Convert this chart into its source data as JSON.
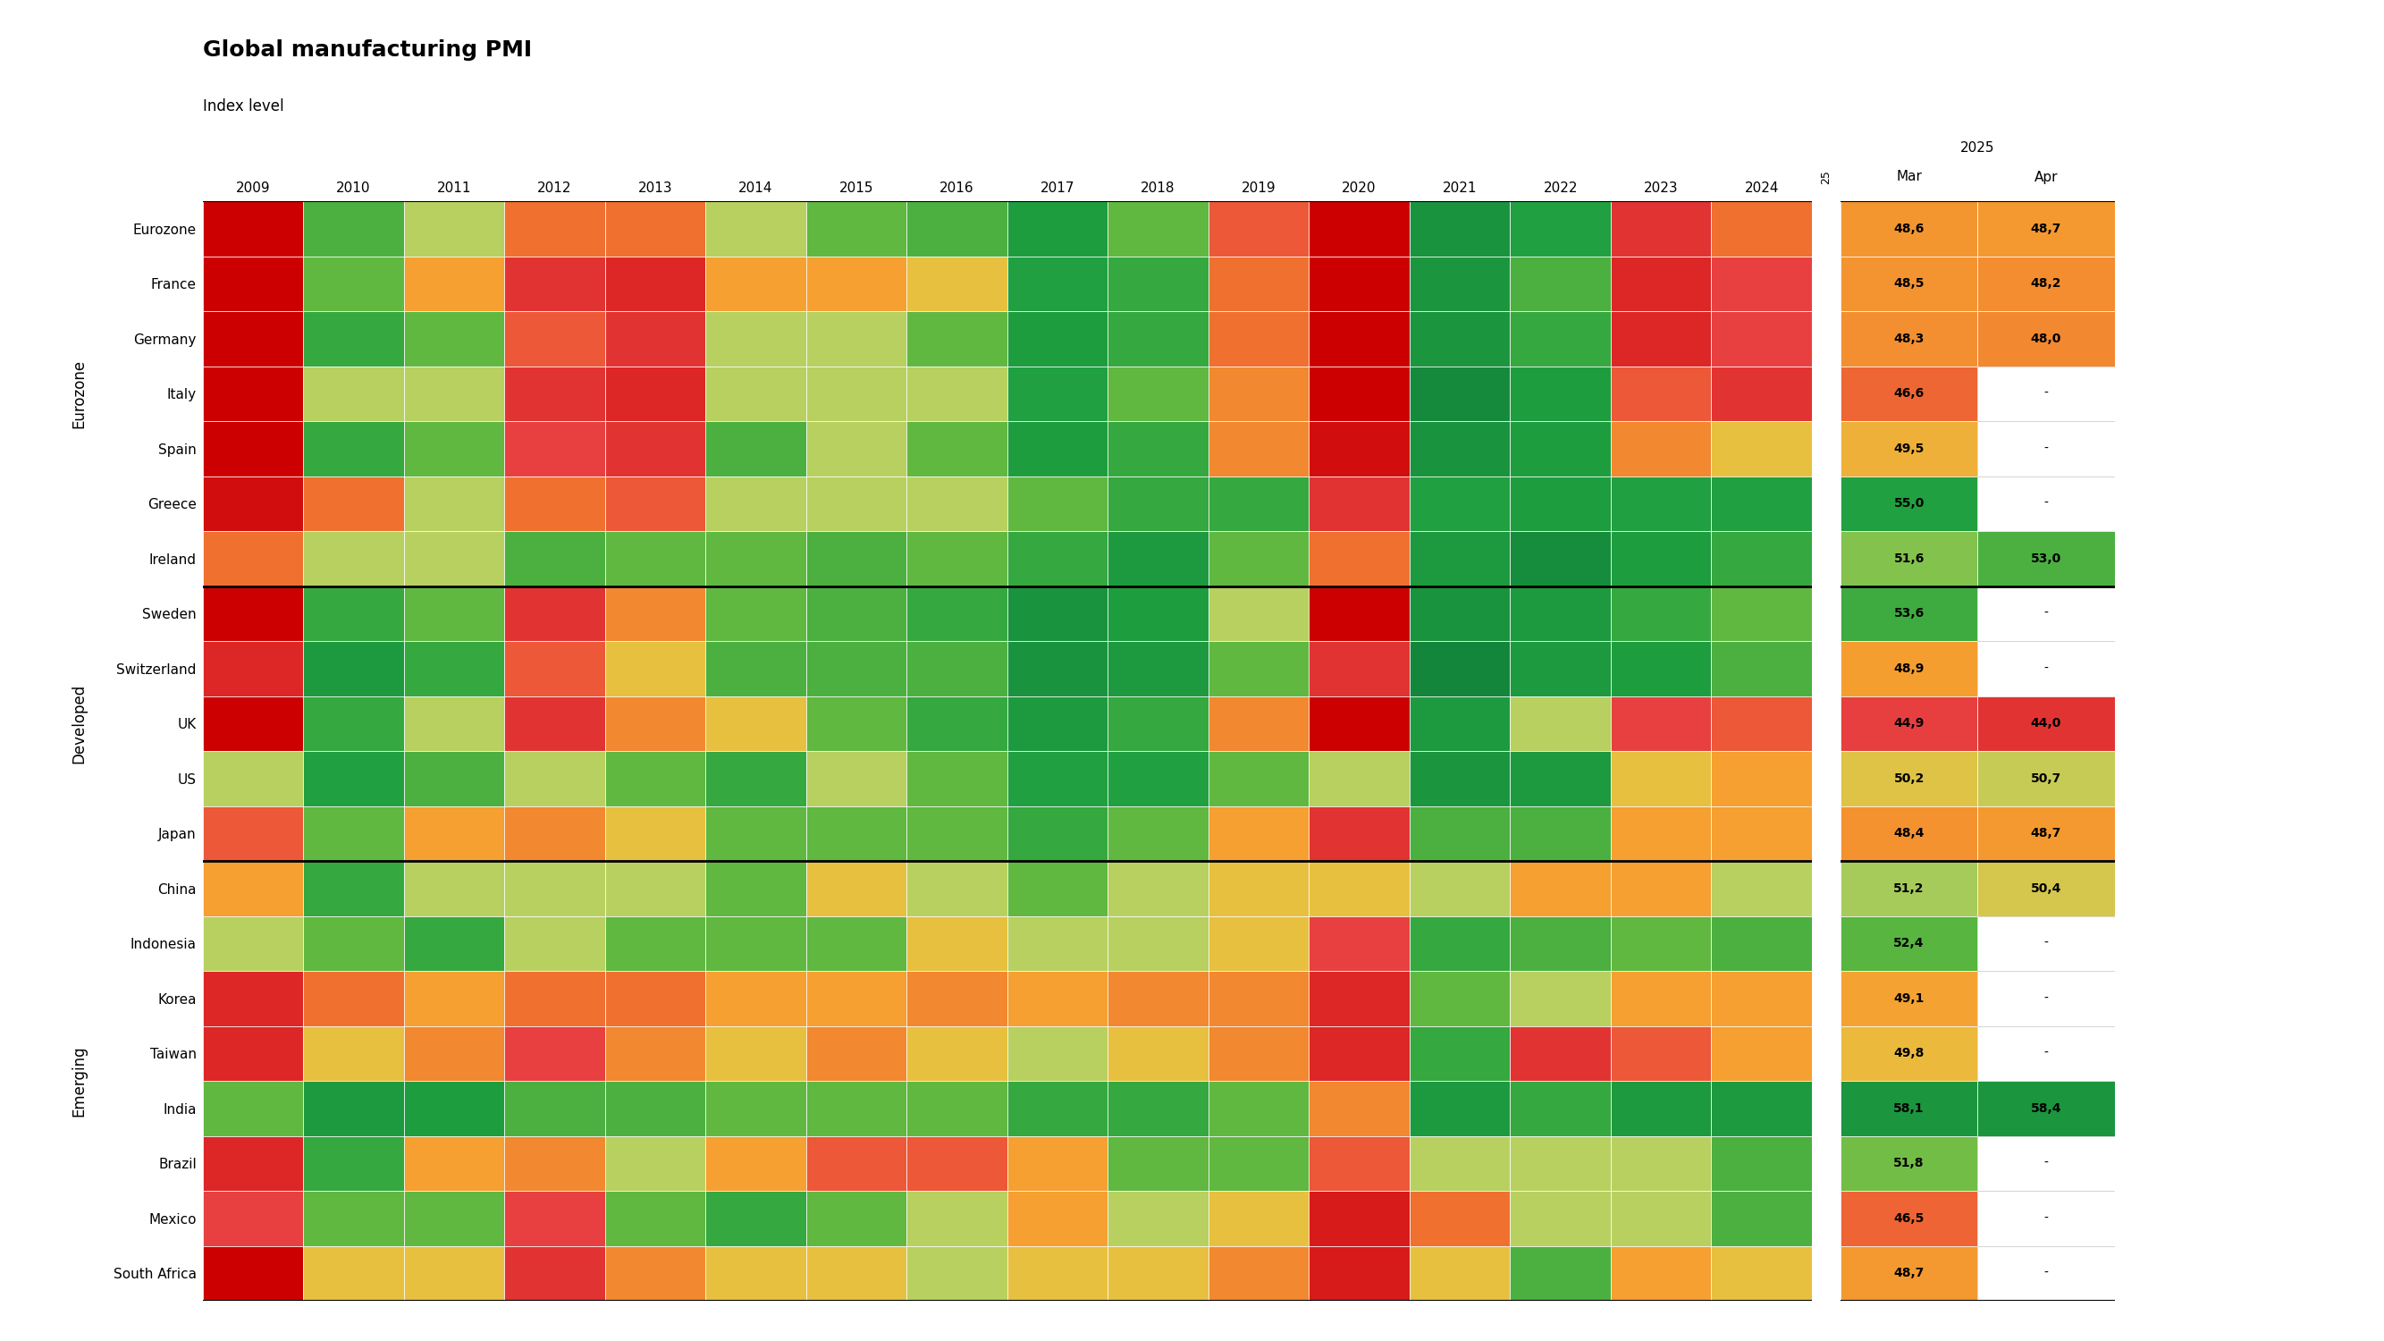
{
  "title": "Global manufacturing PMI",
  "subtitle": "Index level",
  "countries": [
    "Eurozone",
    "France",
    "Germany",
    "Italy",
    "Spain",
    "Greece",
    "Ireland",
    "Sweden",
    "Switzerland",
    "UK",
    "US",
    "Japan",
    "China",
    "Indonesia",
    "Korea",
    "Taiwan",
    "India",
    "Brazil",
    "Mexico",
    "South Africa"
  ],
  "group_configs": [
    {
      "label": "Eurozone",
      "r_start": 0,
      "r_end": 6
    },
    {
      "label": "Developed",
      "r_start": 7,
      "r_end": 11
    },
    {
      "label": "Emerging",
      "r_start": 12,
      "r_end": 19
    }
  ],
  "separator_rows": [
    7,
    12
  ],
  "year_labels": [
    "2009",
    "2010",
    "2011",
    "2012",
    "2013",
    "2014",
    "2015",
    "2016",
    "2017",
    "2018",
    "2019",
    "2020",
    "2021",
    "2022",
    "2023",
    "2024"
  ],
  "mar_2025": [
    48.6,
    48.5,
    48.3,
    46.6,
    49.5,
    55.0,
    51.6,
    53.6,
    48.9,
    44.9,
    50.2,
    48.4,
    51.2,
    52.4,
    49.1,
    49.8,
    58.1,
    51.8,
    46.5,
    48.7
  ],
  "apr_2025": [
    48.7,
    48.2,
    48.0,
    null,
    null,
    null,
    53.0,
    null,
    null,
    44.0,
    50.7,
    48.7,
    50.4,
    null,
    null,
    null,
    58.4,
    null,
    null,
    null
  ],
  "heatmap_data": [
    [
      38,
      53,
      51,
      47,
      47,
      51,
      52,
      53,
      56,
      52,
      46,
      39,
      59,
      55,
      44,
      47
    ],
    [
      37,
      52,
      49,
      44,
      43,
      49,
      49,
      50,
      55,
      54,
      47,
      39,
      58,
      53,
      43,
      45
    ],
    [
      36,
      54,
      52,
      46,
      44,
      51,
      51,
      52,
      56,
      54,
      47,
      38,
      58,
      54,
      43,
      45
    ],
    [
      36,
      51,
      51,
      44,
      43,
      51,
      51,
      51,
      55,
      52,
      48,
      39,
      62,
      56,
      46,
      44
    ],
    [
      37,
      54,
      52,
      45,
      44,
      53,
      51,
      52,
      56,
      54,
      48,
      41,
      59,
      56,
      48,
      50
    ],
    [
      41,
      47,
      51,
      47,
      46,
      51,
      51,
      51,
      52,
      54,
      54,
      44,
      55,
      56,
      55,
      55
    ],
    [
      47,
      51,
      51,
      53,
      52,
      52,
      53,
      52,
      54,
      57,
      52,
      47,
      57,
      61,
      56,
      54
    ],
    [
      40,
      54,
      52,
      44,
      48,
      52,
      53,
      54,
      59,
      56,
      51,
      35,
      59,
      57,
      54,
      52
    ],
    [
      43,
      57,
      54,
      46,
      50,
      53,
      53,
      53,
      59,
      57,
      52,
      44,
      63,
      57,
      56,
      53
    ],
    [
      38,
      54,
      51,
      44,
      48,
      50,
      52,
      54,
      57,
      54,
      48,
      33,
      57,
      51,
      45,
      46
    ],
    [
      51,
      55,
      53,
      51,
      52,
      54,
      51,
      52,
      55,
      55,
      52,
      51,
      58,
      57,
      50,
      49
    ],
    [
      46,
      52,
      49,
      48,
      50,
      52,
      52,
      52,
      54,
      52,
      49,
      44,
      53,
      53,
      49,
      49
    ],
    [
      49,
      54,
      51,
      51,
      51,
      52,
      50,
      51,
      52,
      51,
      50,
      50,
      51,
      49,
      49,
      51
    ],
    [
      51,
      52,
      54,
      51,
      52,
      52,
      52,
      50,
      51,
      51,
      50,
      45,
      54,
      53,
      52,
      53
    ],
    [
      43,
      47,
      49,
      47,
      47,
      49,
      49,
      48,
      49,
      48,
      48,
      43,
      52,
      51,
      49,
      49
    ],
    [
      43,
      50,
      48,
      45,
      48,
      50,
      48,
      50,
      51,
      50,
      48,
      43,
      54,
      44,
      46,
      49
    ],
    [
      52,
      57,
      56,
      53,
      53,
      52,
      52,
      52,
      54,
      54,
      52,
      48,
      57,
      54,
      57,
      57
    ],
    [
      43,
      54,
      49,
      48,
      51,
      49,
      46,
      46,
      49,
      52,
      52,
      46,
      51,
      51,
      51,
      53
    ],
    [
      45,
      52,
      52,
      45,
      52,
      54,
      52,
      51,
      49,
      51,
      50,
      42,
      47,
      51,
      51,
      53
    ],
    [
      39,
      50,
      50,
      44,
      48,
      50,
      50,
      51,
      50,
      50,
      48,
      42,
      50,
      53,
      49,
      50
    ]
  ],
  "color_stops": [
    [
      30,
      "#cc0000"
    ],
    [
      40,
      "#cc0000"
    ],
    [
      45,
      "#e84040"
    ],
    [
      47,
      "#f07030"
    ],
    [
      49,
      "#f5a030"
    ],
    [
      50,
      "#e8c040"
    ],
    [
      51,
      "#b8d060"
    ],
    [
      52,
      "#60b840"
    ],
    [
      55,
      "#20a040"
    ],
    [
      65,
      "#10803a"
    ]
  ],
  "background_color": "#ffffff",
  "title_fontsize": 18,
  "subtitle_fontsize": 12,
  "tick_fontsize": 11,
  "cell_fontsize": 10,
  "group_label_fontsize": 12
}
